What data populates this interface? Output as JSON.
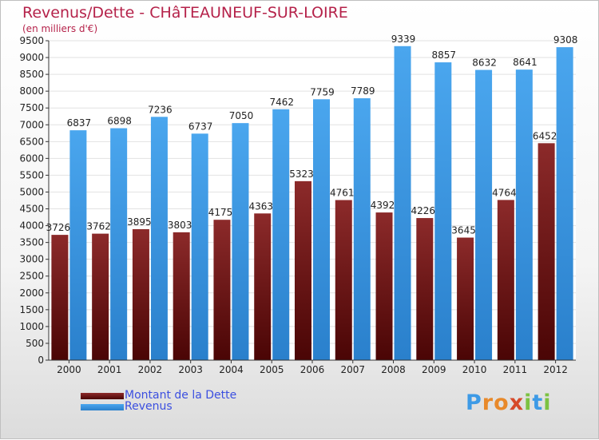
{
  "title": "Revenus/Dette - CHâTEAUNEUF-SUR-LOIRE",
  "subtitle": "(en milliers d'€)",
  "colors": {
    "dette": "#7a1a1a",
    "revenus": "#3d9ae6",
    "title": "#b5224a",
    "legend_text": "#3b4fe0"
  },
  "chart_data": {
    "type": "bar",
    "categories": [
      "2000",
      "2001",
      "2002",
      "2003",
      "2004",
      "2005",
      "2006",
      "2007",
      "2008",
      "2009",
      "2010",
      "2011",
      "2012"
    ],
    "series": [
      {
        "name": "Montant de la Dette",
        "values": [
          3726,
          3762,
          3895,
          3803,
          4175,
          4363,
          5323,
          4761,
          4392,
          4226,
          3645,
          4764,
          6452
        ],
        "labels": [
          "3726",
          "3762",
          "3895",
          "3803",
          "4175",
          "4363",
          "5323",
          "4761",
          "4392",
          "4226",
          "3645",
          "4764",
          "6452"
        ]
      },
      {
        "name": "Revenus",
        "values": [
          6837,
          6898,
          7236,
          6737,
          7050,
          7462,
          7759,
          7789,
          9339,
          8857,
          8632,
          8641,
          9308
        ],
        "labels": [
          "6837",
          "6898",
          "7236",
          "6737",
          "7050",
          "7462",
          "7759",
          "7789",
          "9339",
          "8857",
          "8632",
          "8641",
          "9308"
        ]
      }
    ],
    "ylim": [
      0,
      9500
    ],
    "yticks": [
      "0",
      "500",
      "1000",
      "1500",
      "2000",
      "2500",
      "3000",
      "3500",
      "4000",
      "4500",
      "5000",
      "5500",
      "6000",
      "6500",
      "7000",
      "7500",
      "8000",
      "8500",
      "9000",
      "9500"
    ],
    "grid": true,
    "legend": "bottom-left"
  },
  "legend": {
    "dette": "Montant de la Dette",
    "revenus": "Revenus"
  },
  "logo": {
    "letters": [
      "P",
      "r",
      "o",
      "x",
      "i",
      "t",
      "i"
    ]
  }
}
